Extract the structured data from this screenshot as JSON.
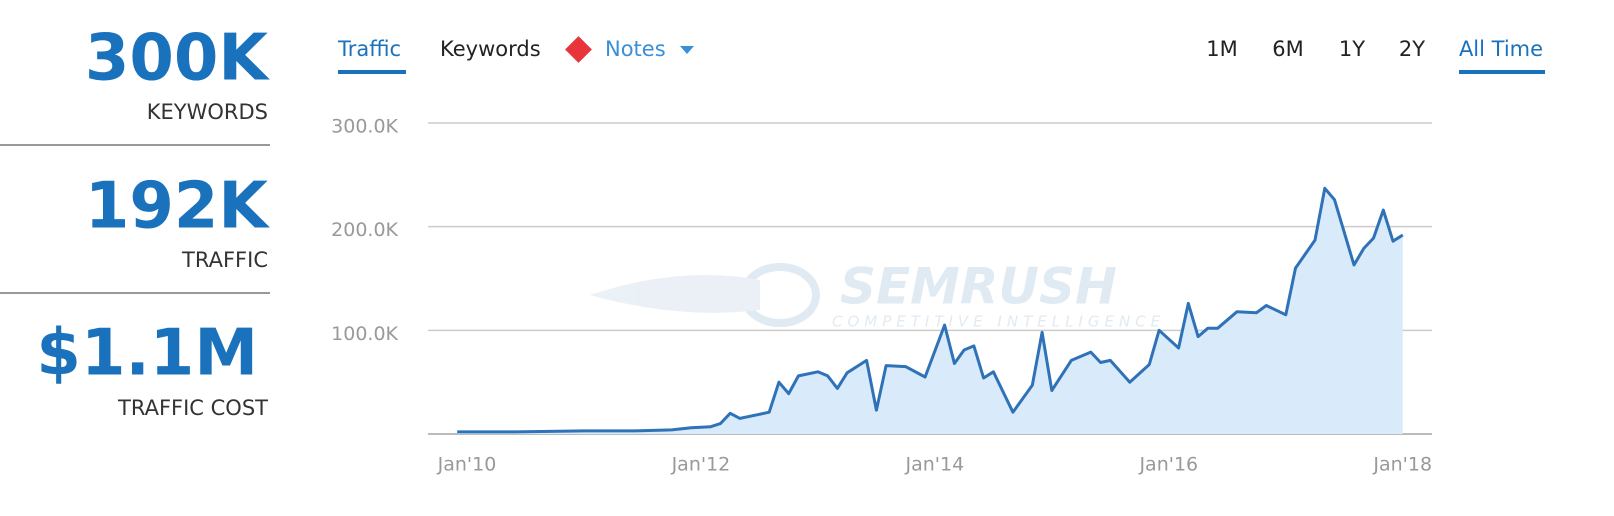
{
  "stats": [
    {
      "value": "300K",
      "label": "KEYWORDS"
    },
    {
      "value": "192K",
      "label": "TRAFFIC"
    },
    {
      "value": "$1.1M",
      "label": "TRAFFIC COST"
    }
  ],
  "tabs": [
    "Traffic",
    "Keywords"
  ],
  "notes": "Notes",
  "ranges": [
    "1M",
    "6M",
    "1Y",
    "2Y",
    "All Time"
  ],
  "watermark": {
    "brand": "SEMRUSH",
    "tagline": "COMPETITIVE INTELLIGENCE"
  },
  "chart_data": {
    "type": "area",
    "color": "#2f72b8",
    "fill": "#d9ebfa",
    "grid": true,
    "x": [
      "2009-12",
      "2010-06",
      "2011-01",
      "2011-06",
      "2011-10",
      "2011-12",
      "2012-02",
      "2012-03",
      "2012-04",
      "2012-05",
      "2012-07",
      "2012-08",
      "2012-09",
      "2012-10",
      "2012-11",
      "2013-01",
      "2013-02",
      "2013-03",
      "2013-04",
      "2013-06",
      "2013-07",
      "2013-08",
      "2013-10",
      "2013-12",
      "2014-02",
      "2014-03",
      "2014-04",
      "2014-05",
      "2014-06",
      "2014-07",
      "2014-09",
      "2014-11",
      "2014-12",
      "2015-01",
      "2015-03",
      "2015-05",
      "2015-06",
      "2015-07",
      "2015-09",
      "2015-11",
      "2015-12",
      "2016-02",
      "2016-03",
      "2016-04",
      "2016-05",
      "2016-06",
      "2016-08",
      "2016-10",
      "2016-11",
      "2017-01",
      "2017-02",
      "2017-04",
      "2017-05",
      "2017-06",
      "2017-08",
      "2017-09",
      "2017-10",
      "2017-11",
      "2017-12",
      "2018-01"
    ],
    "values": [
      2000,
      2000,
      3000,
      3000,
      4000,
      6000,
      7000,
      10000,
      20000,
      15000,
      19000,
      21000,
      50000,
      39000,
      56000,
      60000,
      56000,
      44000,
      59000,
      71000,
      23000,
      66000,
      65000,
      55000,
      105000,
      68000,
      81000,
      85000,
      54000,
      60000,
      21000,
      47000,
      98000,
      42000,
      71000,
      79000,
      69000,
      71000,
      50000,
      67000,
      100000,
      83000,
      126000,
      94000,
      102000,
      102000,
      118000,
      117000,
      124000,
      115000,
      160000,
      187000,
      237000,
      226000,
      163000,
      179000,
      189000,
      216000,
      186000,
      192000
    ],
    "xlim": [
      "2009-09",
      "2018-04"
    ],
    "xticks": [
      {
        "value": "2010-01",
        "label": "Jan'10"
      },
      {
        "value": "2012-01",
        "label": "Jan'12"
      },
      {
        "value": "2014-01",
        "label": "Jan'14"
      },
      {
        "value": "2016-01",
        "label": "Jan'16"
      },
      {
        "value": "2018-01",
        "label": "Jan'18"
      }
    ],
    "ylim": [
      0,
      300000
    ],
    "yticks": [
      {
        "value": 100000,
        "label": "100.0K"
      },
      {
        "value": 200000,
        "label": "200.0K"
      },
      {
        "value": 300000,
        "label": "300.0K"
      }
    ]
  }
}
